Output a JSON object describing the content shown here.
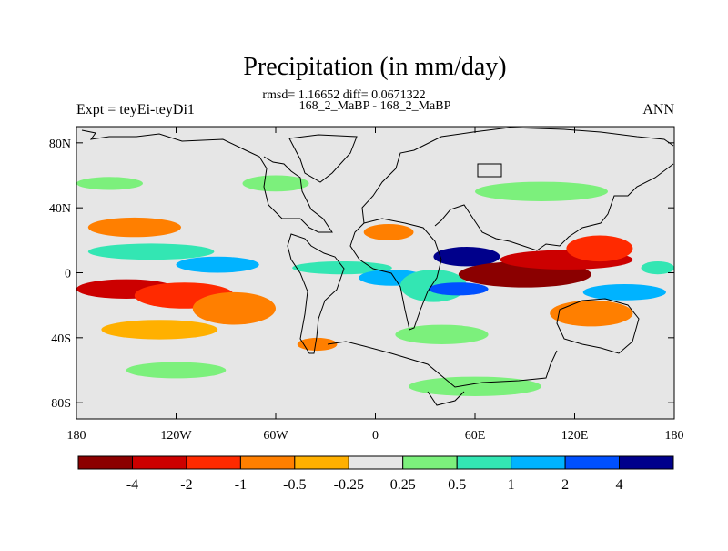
{
  "chart_data": {
    "type": "heatmap",
    "title": "Precipitation (in mm/day)",
    "stats_text": "rmsd= 1.16652 diff= 0.0671322",
    "subtitle": "168_2_MaBP - 168_2_MaBP",
    "left_label": "Expt = teyEi-teyDi1",
    "right_label": "ANN",
    "x_range": [
      -180,
      180
    ],
    "y_range": [
      -90,
      90
    ],
    "x_ticks": [
      {
        "value": -180,
        "label": "180"
      },
      {
        "value": -120,
        "label": "120W"
      },
      {
        "value": -60,
        "label": "60W"
      },
      {
        "value": 0,
        "label": "0"
      },
      {
        "value": 60,
        "label": "60E"
      },
      {
        "value": 120,
        "label": "120E"
      },
      {
        "value": 180,
        "label": "180"
      }
    ],
    "y_ticks": [
      {
        "value": 80,
        "label": "80N"
      },
      {
        "value": 40,
        "label": "40N"
      },
      {
        "value": 0,
        "label": "0"
      },
      {
        "value": -40,
        "label": "40S"
      },
      {
        "value": -80,
        "label": "80S"
      }
    ],
    "colorbar": {
      "colors": [
        "#8b0000",
        "#cc0000",
        "#ff2a00",
        "#ff7f00",
        "#ffb000",
        "#e6e6e6",
        "#7cf07c",
        "#33e6b3",
        "#00b3ff",
        "#0050ff",
        "#00008b"
      ],
      "boundary_labels": [
        "-4",
        "-2",
        "-1",
        "-0.5",
        "-0.25",
        "0.25",
        "0.5",
        "1",
        "2",
        "4"
      ]
    },
    "regions": [
      {
        "lon": -135,
        "lat": 13,
        "rx": 38,
        "ry": 5,
        "level": 7
      },
      {
        "lon": -95,
        "lat": 5,
        "rx": 25,
        "ry": 5,
        "level": 8
      },
      {
        "lon": -145,
        "lat": 28,
        "rx": 28,
        "ry": 6,
        "level": 3
      },
      {
        "lon": -150,
        "lat": -10,
        "rx": 30,
        "ry": 6,
        "level": 1
      },
      {
        "lon": -115,
        "lat": -14,
        "rx": 30,
        "ry": 8,
        "level": 2
      },
      {
        "lon": -85,
        "lat": -22,
        "rx": 25,
        "ry": 10,
        "level": 3
      },
      {
        "lon": -130,
        "lat": -35,
        "rx": 35,
        "ry": 6,
        "level": 4
      },
      {
        "lon": -35,
        "lat": -44,
        "rx": 12,
        "ry": 4,
        "level": 3
      },
      {
        "lon": -20,
        "lat": 3,
        "rx": 30,
        "ry": 4,
        "level": 7
      },
      {
        "lon": 10,
        "lat": -3,
        "rx": 20,
        "ry": 5,
        "level": 8
      },
      {
        "lon": 35,
        "lat": -8,
        "rx": 20,
        "ry": 10,
        "level": 7
      },
      {
        "lon": 40,
        "lat": -38,
        "rx": 28,
        "ry": 6,
        "level": 6
      },
      {
        "lon": 8,
        "lat": 25,
        "rx": 15,
        "ry": 5,
        "level": 3
      },
      {
        "lon": 55,
        "lat": 10,
        "rx": 20,
        "ry": 6,
        "level": 10
      },
      {
        "lon": 50,
        "lat": -10,
        "rx": 18,
        "ry": 4,
        "level": 9
      },
      {
        "lon": 90,
        "lat": -1,
        "rx": 40,
        "ry": 8,
        "level": 0
      },
      {
        "lon": 115,
        "lat": 8,
        "rx": 40,
        "ry": 6,
        "level": 1
      },
      {
        "lon": 135,
        "lat": 15,
        "rx": 20,
        "ry": 8,
        "level": 2
      },
      {
        "lon": 130,
        "lat": -25,
        "rx": 25,
        "ry": 8,
        "level": 3
      },
      {
        "lon": 150,
        "lat": -12,
        "rx": 25,
        "ry": 5,
        "level": 8
      },
      {
        "lon": 170,
        "lat": 3,
        "rx": 10,
        "ry": 4,
        "level": 7
      },
      {
        "lon": 100,
        "lat": 50,
        "rx": 40,
        "ry": 6,
        "level": 6
      },
      {
        "lon": -160,
        "lat": 55,
        "rx": 20,
        "ry": 4,
        "level": 6
      },
      {
        "lon": -60,
        "lat": 55,
        "rx": 20,
        "ry": 5,
        "level": 6
      },
      {
        "lon": 60,
        "lat": -70,
        "rx": 40,
        "ry": 6,
        "level": 6
      },
      {
        "lon": -120,
        "lat": -60,
        "rx": 30,
        "ry": 5,
        "level": 6
      }
    ]
  }
}
